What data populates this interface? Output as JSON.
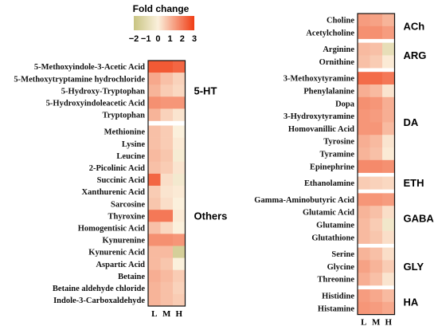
{
  "chart_data": {
    "type": "heatmap",
    "title": "",
    "columns": [
      "L",
      "M",
      "H"
    ],
    "colorbar": {
      "title": "Fold change",
      "ticks": [
        "−2",
        "−1",
        "0",
        "1",
        "2",
        "3"
      ],
      "range": [
        -2,
        3
      ],
      "colors": {
        "low": "#c8c482",
        "mid": "#fbf0dc",
        "high": "#f03c14"
      }
    },
    "panels": [
      {
        "name": "left",
        "groups": [
          {
            "label": "5-HT",
            "rows": [
              {
                "name": "5-Methoxyindole-3-Acetic Acid",
                "values": [
                  2.5,
                  2.5,
                  2.3
                ]
              },
              {
                "name": "5-Methoxytryptamine hydrochloride",
                "values": [
                  1.2,
                  0.8,
                  0.5
                ]
              },
              {
                "name": "5-Hydroxy-Tryptophan",
                "values": [
                  1.0,
                  0.6,
                  0.4
                ]
              },
              {
                "name": "5-Hydroxyindoleacetic Acid",
                "values": [
                  1.6,
                  1.5,
                  1.5
                ]
              },
              {
                "name": "Tryptophan",
                "values": [
                  1.0,
                  0.5,
                  0.2
                ]
              }
            ]
          },
          {
            "label": "Others",
            "rows": [
              {
                "name": "Methionine",
                "values": [
                  0.8,
                  0.6,
                  0.0
                ]
              },
              {
                "name": "Lysine",
                "values": [
                  0.8,
                  0.6,
                  0.1
                ]
              },
              {
                "name": "Leucine",
                "values": [
                  0.9,
                  0.7,
                  -0.2
                ]
              },
              {
                "name": "2-Picolinic Acid",
                "values": [
                  0.8,
                  0.6,
                  0.2
                ]
              },
              {
                "name": "Succinic Acid",
                "values": [
                  2.3,
                  0.3,
                  -0.3
                ]
              },
              {
                "name": "Xanthurenic Acid",
                "values": [
                  0.6,
                  0.2,
                  0.1
                ]
              },
              {
                "name": "Sarcosine",
                "values": [
                  0.7,
                  0.3,
                  0.0
                ]
              },
              {
                "name": "Thyroxine",
                "values": [
                  2.0,
                  2.0,
                  0.1
                ]
              },
              {
                "name": "Homogentisic Acid",
                "values": [
                  0.8,
                  0.4,
                  0.0
                ]
              },
              {
                "name": "Kynurenine",
                "values": [
                  1.6,
                  1.6,
                  1.5
                ]
              },
              {
                "name": "Kynurenic Acid",
                "values": [
                  0.9,
                  0.9,
                  -1.5
                ]
              },
              {
                "name": "Aspartic Acid",
                "values": [
                  0.9,
                  0.7,
                  0.0
                ]
              },
              {
                "name": "Betaine",
                "values": [
                  1.1,
                  0.9,
                  0.6
                ]
              },
              {
                "name": "Betaine aldehyde chloride",
                "values": [
                  1.0,
                  0.8,
                  0.5
                ]
              },
              {
                "name": "Indole-3-Carboxaldehyde",
                "values": [
                  1.0,
                  0.8,
                  0.6
                ]
              }
            ]
          }
        ]
      },
      {
        "name": "right",
        "groups": [
          {
            "label": "ACh",
            "rows": [
              {
                "name": "Choline",
                "values": [
                  1.4,
                  1.3,
                  1.0
                ]
              },
              {
                "name": "Acetylcholine",
                "values": [
                  1.6,
                  1.6,
                  1.4
                ]
              }
            ]
          },
          {
            "label": "ARG",
            "rows": [
              {
                "name": "Arginine",
                "values": [
                  0.9,
                  0.8,
                  -0.8
                ]
              },
              {
                "name": "Ornithine",
                "values": [
                  0.8,
                  0.6,
                  0.1
                ]
              }
            ]
          },
          {
            "label": "DA",
            "rows": [
              {
                "name": "3-Methoxytyramine",
                "values": [
                  2.2,
                  2.2,
                  2.0
                ]
              },
              {
                "name": "Phenylalanine",
                "values": [
                  1.1,
                  0.9,
                  0.2
                ]
              },
              {
                "name": "Dopa",
                "values": [
                  1.6,
                  1.5,
                  1.1
                ]
              },
              {
                "name": "3-Hydroxytyramine",
                "values": [
                  1.5,
                  1.4,
                  1.1
                ]
              },
              {
                "name": "Homovanillic Acid",
                "values": [
                  1.5,
                  1.5,
                  0.9
                ]
              },
              {
                "name": "Tyrosine",
                "values": [
                  1.1,
                  0.9,
                  0.2
                ]
              },
              {
                "name": "Tyramine",
                "values": [
                  1.0,
                  0.8,
                  0.1
                ]
              },
              {
                "name": "Epinephrine",
                "values": [
                  1.7,
                  1.7,
                  1.6
                ]
              }
            ]
          },
          {
            "label": "ETH",
            "rows": [
              {
                "name": "Ethanolamine",
                "values": [
                  0.6,
                  0.5,
                  0.4
                ]
              }
            ]
          },
          {
            "label": "GABA",
            "rows": [
              {
                "name": "Gamma-Aminobutyric Acid",
                "values": [
                  1.5,
                  1.5,
                  1.4
                ]
              },
              {
                "name": "Glutamic Acid",
                "values": [
                  1.0,
                  0.8,
                  0.3
                ]
              },
              {
                "name": "Glutamine",
                "values": [
                  0.9,
                  0.6,
                  -0.4
                ]
              },
              {
                "name": "Glutathione",
                "values": [
                  0.9,
                  0.7,
                  0.3
                ]
              }
            ]
          },
          {
            "label": "GLY",
            "rows": [
              {
                "name": "Serine",
                "values": [
                  1.0,
                  0.8,
                  0.3
                ]
              },
              {
                "name": "Glycine",
                "values": [
                  1.3,
                  1.0,
                  0.6
                ]
              },
              {
                "name": "Threonine",
                "values": [
                  1.1,
                  0.8,
                  0.2
                ]
              }
            ]
          },
          {
            "label": "HA",
            "rows": [
              {
                "name": "Histidine",
                "values": [
                  1.4,
                  1.2,
                  0.9
                ]
              },
              {
                "name": "Histamine",
                "values": [
                  1.5,
                  1.4,
                  1.2
                ]
              }
            ]
          }
        ]
      }
    ]
  }
}
